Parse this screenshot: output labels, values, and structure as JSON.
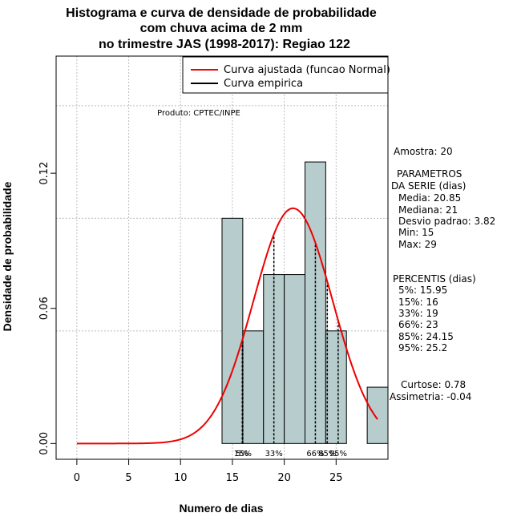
{
  "chart_data": {
    "type": "bar",
    "title_lines": [
      "Histograma e curva de densidade de probabilidade",
      "com chuva acima de 2 mm",
      "no trimestre JAS (1998-2017): Regiao 122"
    ],
    "xlabel": "Numero de dias",
    "ylabel": "Densidade de probabilidade",
    "xlim": [
      -2,
      30
    ],
    "ylim": [
      -0.007,
      0.172
    ],
    "xticks": [
      0,
      5,
      10,
      15,
      20,
      25
    ],
    "xtick_labels": [
      "0",
      "5",
      "10",
      "15",
      "20",
      "25"
    ],
    "yticks": [
      0.0,
      0.06,
      0.12
    ],
    "ytick_labels": [
      "0.00",
      "0.06",
      "0.12"
    ],
    "grid_x": [
      0,
      5,
      10,
      15,
      20,
      25
    ],
    "grid_y": [
      0.05,
      0.1,
      0.15
    ],
    "histogram": {
      "bin_edges": [
        14,
        16,
        18,
        20,
        22,
        24,
        26,
        28,
        30
      ],
      "densities": [
        0.1,
        0.05,
        0.075,
        0.075,
        0.125,
        0.05,
        0.0,
        0.025
      ],
      "fill": "#b7cccc",
      "stroke": "#000000"
    },
    "normal_curve": {
      "mean": 20.85,
      "sd": 3.82,
      "x_range": [
        0,
        29
      ],
      "color": "#ee0000"
    },
    "percentile_lines": [
      {
        "x": 15.95,
        "label": "5%"
      },
      {
        "x": 16,
        "label": "15%"
      },
      {
        "x": 19,
        "label": "33%"
      },
      {
        "x": 23,
        "label": "66%"
      },
      {
        "x": 24.15,
        "label": "85%"
      },
      {
        "x": 25.2,
        "label": "95%"
      }
    ],
    "legend": {
      "position": "top-right",
      "entries": [
        {
          "label": "Curva ajustada (funcao Normal)",
          "color": "#ee0000"
        },
        {
          "label": "Curva empirica",
          "color": "#000000"
        }
      ]
    },
    "annotation": "Produto: CPTEC/INPE",
    "side_panel": {
      "amostra": "Amostra: 20",
      "parametros_title": "PARAMETROS",
      "parametros_sub": "DA SERIE (dias)",
      "media": "Media: 20.85",
      "mediana": "Mediana: 21",
      "desvio": "Desvio padrao: 3.82",
      "min": "Min: 15",
      "max": "Max: 29",
      "percentis_title": "PERCENTIS (dias)",
      "p5": "5%: 15.95",
      "p15": "15%: 16",
      "p33": "33%: 19",
      "p66": "66%: 23",
      "p85": "85%: 24.15",
      "p95": "95%: 25.2",
      "curtose": "Curtose: 0.78",
      "assimetria": "Assimetria: -0.04"
    }
  }
}
